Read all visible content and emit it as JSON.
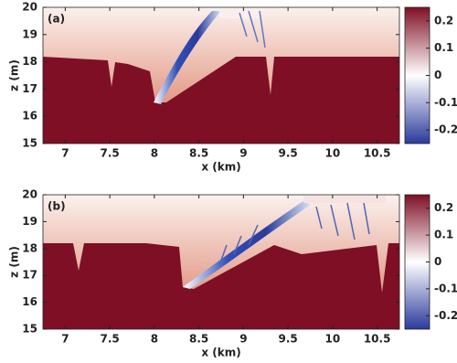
{
  "chart_data": [
    {
      "type": "heatmap",
      "panel_label": "(a)",
      "xlabel": "x (km)",
      "ylabel": "z (m)",
      "xlim": [
        6.75,
        10.75
      ],
      "xticks": [
        7,
        7.5,
        8,
        8.5,
        9,
        9.5,
        10,
        10.5
      ],
      "ylim": [
        15,
        20
      ],
      "yticks": [
        15,
        16,
        17,
        18,
        19,
        20
      ],
      "colorbar": {
        "lim": [
          -0.25,
          0.25
        ],
        "ticks": [
          -0.2,
          -0.1,
          0,
          0.1,
          0.2
        ],
        "colors": [
          "#2b3a9c",
          "#ffffff",
          "#7f0f25"
        ]
      }
    },
    {
      "type": "heatmap",
      "panel_label": "(b)",
      "xlabel": "x (km)",
      "ylabel": "z (m)",
      "xlim": [
        6.75,
        10.75
      ],
      "xticks": [
        7,
        7.5,
        8,
        8.5,
        9,
        9.5,
        10,
        10.5
      ],
      "ylim": [
        15,
        20
      ],
      "yticks": [
        15,
        16,
        17,
        18,
        19,
        20
      ],
      "colorbar": {
        "lim": [
          -0.25,
          0.25
        ],
        "ticks": [
          -0.2,
          -0.1,
          0,
          0.1,
          0.2
        ],
        "colors": [
          "#2b3a9c",
          "#ffffff",
          "#7f0f25"
        ]
      }
    }
  ]
}
